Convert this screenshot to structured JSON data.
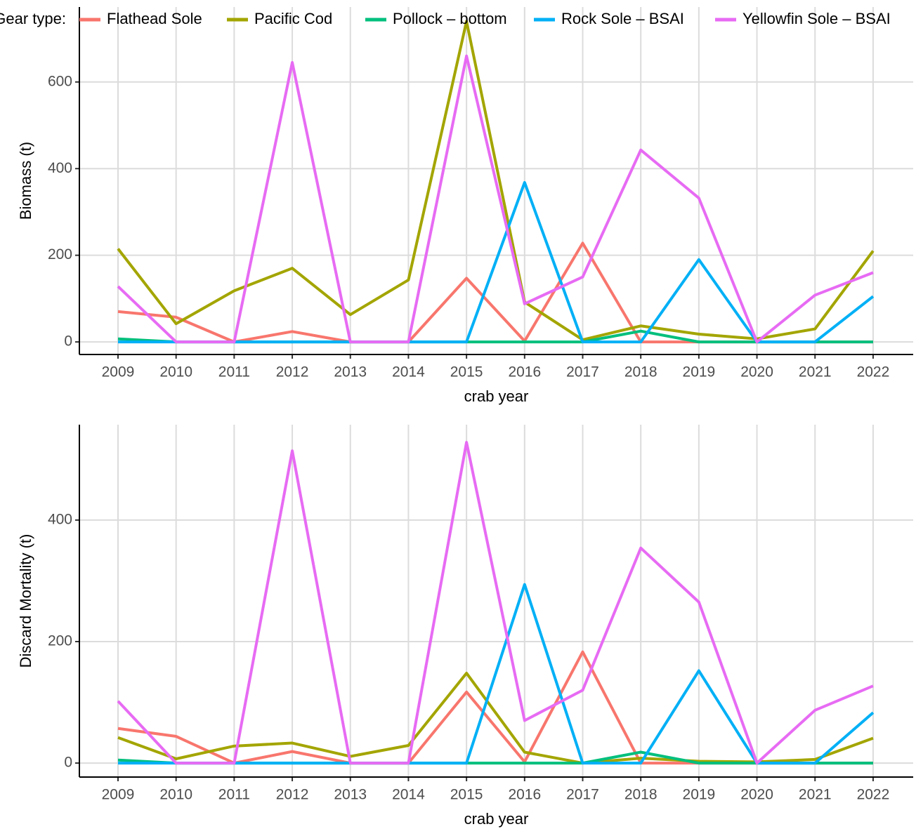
{
  "chart_data": [
    {
      "type": "line",
      "legend_title": "Gear type:",
      "xlabel": "crab year",
      "ylabel": "Biomass (t)",
      "x": [
        2009,
        2010,
        2011,
        2012,
        2013,
        2014,
        2015,
        2016,
        2017,
        2018,
        2019,
        2020,
        2021,
        2022
      ],
      "xlim": [
        2008.335,
        2022.69
      ],
      "xticks": [
        2009,
        2010,
        2011,
        2012,
        2013,
        2014,
        2015,
        2016,
        2017,
        2018,
        2019,
        2020,
        2021,
        2022
      ],
      "ylim": [
        -29,
        773
      ],
      "yticks": [
        0,
        200,
        400,
        600
      ],
      "grid": true,
      "series": [
        {
          "name": "Flathead Sole",
          "color": "#f8766d",
          "values": [
            70,
            57,
            0,
            24,
            0,
            0,
            147,
            2,
            228,
            0,
            0,
            0,
            0,
            0
          ]
        },
        {
          "name": "Pacific Cod",
          "color": "#a3a500",
          "values": [
            215,
            42,
            118,
            170,
            63,
            143,
            740,
            92,
            5,
            37,
            18,
            7,
            30,
            210
          ]
        },
        {
          "name": "Pollock – bottom",
          "color": "#00bf7d",
          "values": [
            7,
            0,
            0,
            0,
            0,
            0,
            0,
            0,
            0,
            25,
            0,
            0,
            0,
            0
          ]
        },
        {
          "name": "Rock Sole – BSAI",
          "color": "#00b0f6",
          "values": [
            0,
            0,
            0,
            0,
            0,
            0,
            0,
            368,
            0,
            0,
            190,
            0,
            0,
            105
          ]
        },
        {
          "name": "Yellowfin Sole – BSAI",
          "color": "#e76bf3",
          "values": [
            128,
            0,
            0,
            645,
            0,
            0,
            660,
            88,
            150,
            443,
            332,
            0,
            108,
            160
          ]
        }
      ]
    },
    {
      "type": "line",
      "xlabel": "crab year",
      "ylabel": "Discard Mortality (t)",
      "x": [
        2009,
        2010,
        2011,
        2012,
        2013,
        2014,
        2015,
        2016,
        2017,
        2018,
        2019,
        2020,
        2021,
        2022
      ],
      "xlim": [
        2008.335,
        2022.69
      ],
      "xticks": [
        2009,
        2010,
        2011,
        2012,
        2013,
        2014,
        2015,
        2016,
        2017,
        2018,
        2019,
        2020,
        2021,
        2022
      ],
      "ylim": [
        -23,
        557
      ],
      "yticks": [
        0,
        200,
        400
      ],
      "grid": true,
      "series": [
        {
          "name": "Flathead Sole",
          "color": "#f8766d",
          "values": [
            57,
            44,
            0,
            19,
            0,
            0,
            117,
            2,
            183,
            0,
            0,
            0,
            0,
            0
          ]
        },
        {
          "name": "Pacific Cod",
          "color": "#a3a500",
          "values": [
            42,
            7,
            28,
            33,
            11,
            29,
            148,
            18,
            0,
            8,
            3,
            2,
            6,
            41
          ]
        },
        {
          "name": "Pollock – bottom",
          "color": "#00bf7d",
          "values": [
            5,
            0,
            0,
            0,
            0,
            0,
            0,
            0,
            0,
            18,
            0,
            0,
            0,
            0
          ]
        },
        {
          "name": "Rock Sole – BSAI",
          "color": "#00b0f6",
          "values": [
            0,
            0,
            0,
            0,
            0,
            0,
            0,
            294,
            0,
            0,
            152,
            0,
            0,
            83
          ]
        },
        {
          "name": "Yellowfin Sole – BSAI",
          "color": "#e76bf3",
          "values": [
            102,
            0,
            0,
            514,
            0,
            0,
            528,
            70,
            120,
            354,
            265,
            0,
            87,
            127
          ]
        }
      ]
    }
  ]
}
